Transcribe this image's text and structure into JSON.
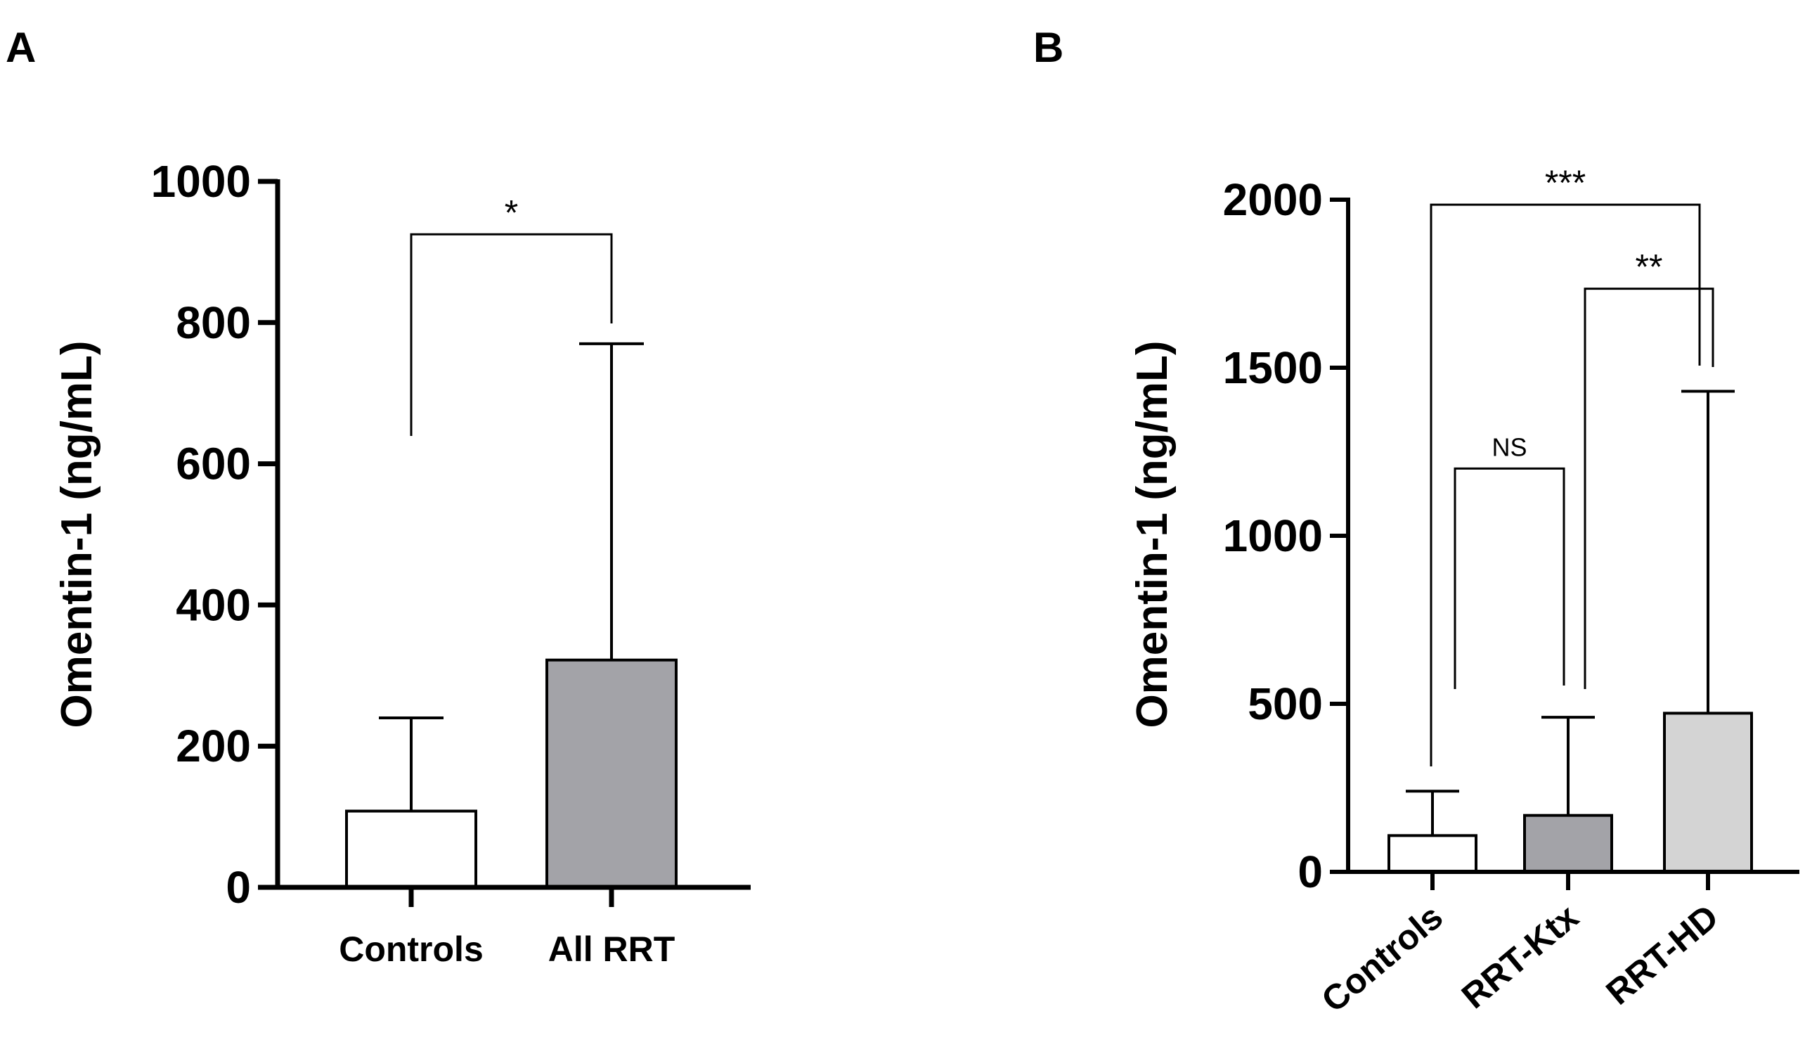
{
  "chart_data": [
    {
      "panel": "A",
      "type": "bar",
      "ylabel": "Omentin-1  (ng/mL)",
      "xlabel": "",
      "ylim": [
        0,
        1000
      ],
      "yticks": [
        0,
        200,
        400,
        600,
        800,
        1000
      ],
      "categories": [
        "Controls",
        "All RRT"
      ],
      "values": [
        108,
        322
      ],
      "errors_upper": [
        240,
        770
      ],
      "bar_colors": [
        "#ffffff",
        "#a3a3a8"
      ],
      "significance": [
        {
          "from": 0,
          "to": 1,
          "label": "*",
          "y": 925
        }
      ]
    },
    {
      "panel": "B",
      "type": "bar",
      "ylabel": "Omentin-1  (ng/mL)",
      "xlabel": "",
      "ylim": [
        0,
        2000
      ],
      "yticks": [
        0,
        500,
        1000,
        1500,
        2000
      ],
      "categories": [
        "Controls",
        "RRT-Ktx",
        "RRT-HD"
      ],
      "values": [
        108,
        168,
        472
      ],
      "errors_upper": [
        240,
        460,
        1430
      ],
      "bar_colors": [
        "#ffffff",
        "#a3a3a8",
        "#d4d4d4"
      ],
      "significance": [
        {
          "from": 0,
          "to": 1,
          "label": "NS",
          "y": 1200
        },
        {
          "from": 1,
          "to": 2,
          "label": "**",
          "y": 1735
        },
        {
          "from": 0,
          "to": 2,
          "label": "***",
          "y": 1985
        }
      ]
    }
  ]
}
